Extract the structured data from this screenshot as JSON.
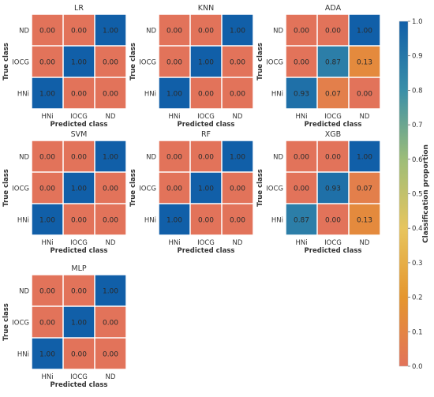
{
  "chart_data": {
    "type": "heatmap",
    "colorbar": {
      "label": "Classification proportion",
      "range": [
        0.0,
        1.0
      ],
      "ticks": [
        "0.0",
        "0.1",
        "0.2",
        "0.3",
        "0.4",
        "0.5",
        "0.6",
        "0.7",
        "0.8",
        "0.9",
        "1.0"
      ],
      "colors": [
        "#e2735a",
        "#e5962e",
        "#e7c55e",
        "#9dbd78",
        "#3a8fa8",
        "#115fa8"
      ]
    },
    "row_labels": [
      "ND",
      "IOCG",
      "HNi"
    ],
    "col_labels": [
      "HNi",
      "IOCG",
      "ND"
    ],
    "xlabel": "Predicted class",
    "ylabel": "True class",
    "panels": [
      {
        "title": "LR",
        "matrix": [
          [
            0.0,
            0.0,
            1.0
          ],
          [
            0.0,
            1.0,
            0.0
          ],
          [
            1.0,
            0.0,
            0.0
          ]
        ],
        "labels": [
          [
            "0.00",
            "0.00",
            "1.00"
          ],
          [
            "0.00",
            "1.00",
            "0.00"
          ],
          [
            "1.00",
            "0.00",
            "0.00"
          ]
        ]
      },
      {
        "title": "KNN",
        "matrix": [
          [
            0.0,
            0.0,
            1.0
          ],
          [
            0.0,
            1.0,
            0.0
          ],
          [
            1.0,
            0.0,
            0.0
          ]
        ],
        "labels": [
          [
            "0.00",
            "0.00",
            "1.00"
          ],
          [
            "0.00",
            "1.00",
            "0.00"
          ],
          [
            "1.00",
            "0.00",
            "0.00"
          ]
        ]
      },
      {
        "title": "ADA",
        "matrix": [
          [
            0.0,
            0.0,
            1.0
          ],
          [
            0.0,
            0.87,
            0.13
          ],
          [
            0.93,
            0.07,
            0.0
          ]
        ],
        "labels": [
          [
            "0.00",
            "0.00",
            "1.00"
          ],
          [
            "0.00",
            "0.87",
            "0.13"
          ],
          [
            "0.93",
            "0.07",
            "0.00"
          ]
        ]
      },
      {
        "title": "SVM",
        "matrix": [
          [
            0.0,
            0.0,
            1.0
          ],
          [
            0.0,
            1.0,
            0.0
          ],
          [
            1.0,
            0.0,
            0.0
          ]
        ],
        "labels": [
          [
            "0.00",
            "0.00",
            "1.00"
          ],
          [
            "0.00",
            "1.00",
            "0.00"
          ],
          [
            "1.00",
            "0.00",
            "0.00"
          ]
        ]
      },
      {
        "title": "RF",
        "matrix": [
          [
            0.0,
            0.0,
            1.0
          ],
          [
            0.0,
            1.0,
            0.0
          ],
          [
            1.0,
            0.0,
            0.0
          ]
        ],
        "labels": [
          [
            "0.00",
            "0.00",
            "1.00"
          ],
          [
            "0.00",
            "1.00",
            "0.00"
          ],
          [
            "1.00",
            "0.00",
            "0.00"
          ]
        ]
      },
      {
        "title": "XGB",
        "matrix": [
          [
            0.0,
            0.0,
            1.0
          ],
          [
            0.0,
            0.93,
            0.07
          ],
          [
            0.87,
            0.0,
            0.13
          ]
        ],
        "labels": [
          [
            "0.00",
            "0.00",
            "1.00"
          ],
          [
            "0.00",
            "0.93",
            "0.07"
          ],
          [
            "0.87",
            "0.00",
            "0.13"
          ]
        ]
      },
      {
        "title": "MLP",
        "matrix": [
          [
            0.0,
            0.0,
            1.0
          ],
          [
            0.0,
            1.0,
            0.0
          ],
          [
            1.0,
            0.0,
            0.0
          ]
        ],
        "labels": [
          [
            "0.00",
            "0.00",
            "1.00"
          ],
          [
            "0.00",
            "1.00",
            "0.00"
          ],
          [
            "1.00",
            "0.00",
            "0.00"
          ]
        ]
      }
    ]
  }
}
